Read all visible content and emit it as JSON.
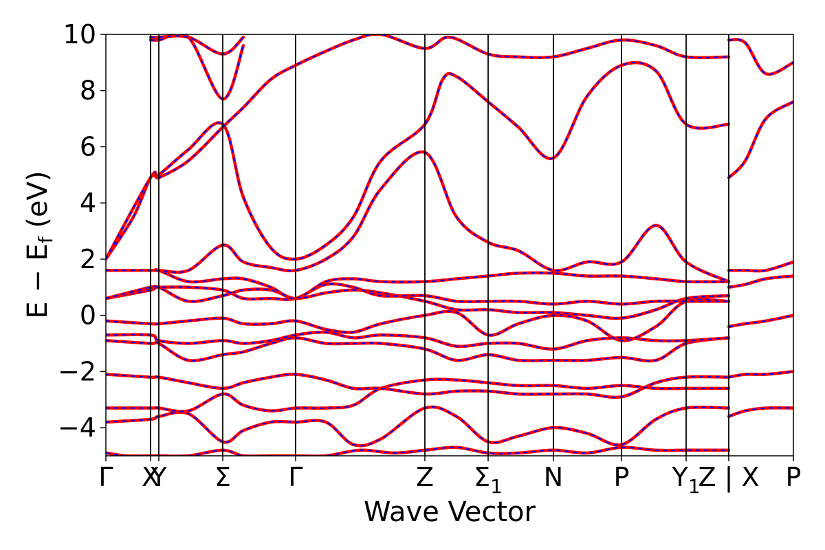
{
  "chart_data": {
    "type": "line",
    "title": "",
    "xlabel": "Wave Vector",
    "ylabel": "E − E_f (eV)",
    "ylabel_parts": {
      "main": "E − E",
      "sub": "f",
      "unit": " (eV)"
    },
    "ylim": [
      -5,
      10
    ],
    "yticks": [
      {
        "value": -4,
        "label": "−4"
      },
      {
        "value": -2,
        "label": "−2"
      },
      {
        "value": 0,
        "label": "0"
      },
      {
        "value": 2,
        "label": "2"
      },
      {
        "value": 4,
        "label": "4"
      },
      {
        "value": 6,
        "label": "6"
      },
      {
        "value": 8,
        "label": "8"
      },
      {
        "value": 10,
        "label": "10"
      }
    ],
    "xlim": [
      0,
      1
    ],
    "kpoints": [
      {
        "label": "Γ",
        "x": 0.0,
        "line": false
      },
      {
        "label": "X",
        "x": 0.065,
        "line": true
      },
      {
        "label": "Y",
        "x": 0.077,
        "line": true
      },
      {
        "label": "Σ",
        "x": 0.17,
        "line": true
      },
      {
        "label": "Γ",
        "x": 0.276,
        "line": true
      },
      {
        "label": "Z",
        "x": 0.464,
        "line": true
      },
      {
        "label": "Σ",
        "label_sub": "1",
        "x": 0.556,
        "line": true
      },
      {
        "label": "N",
        "x": 0.651,
        "line": true
      },
      {
        "label": "P",
        "x": 0.75,
        "line": true
      },
      {
        "label": "Y",
        "label_sub": "1",
        "x": 0.844,
        "line": true
      },
      {
        "label": "Z | X",
        "x": 0.906,
        "line": true
      },
      {
        "label": "P",
        "x": 1.0,
        "line": false
      }
    ],
    "line_colors": {
      "band": "#ff0000",
      "band_overlay": "#0000ff",
      "kpath": "#000000"
    },
    "series_style": "each band drawn as red solid line with blue dashed overlay",
    "series": [
      {
        "x": [
          0,
          0.03,
          0.065,
          0.077,
          0.12,
          0.17,
          0.2,
          0.24,
          0.276,
          0.32,
          0.37,
          0.42,
          0.464,
          0.51,
          0.556,
          0.6,
          0.651,
          0.7,
          0.75,
          0.8,
          0.844,
          0.906
        ],
        "values": [
          -4.9,
          -5.0,
          -5.0,
          -5.0,
          -5.0,
          -4.8,
          -5.0,
          -5.0,
          -5.0,
          -5.0,
          -4.8,
          -4.9,
          -4.8,
          -4.7,
          -4.9,
          -4.9,
          -4.8,
          -4.9,
          -4.7,
          -4.8,
          -4.8,
          -4.8
        ]
      },
      {
        "x": [
          0,
          0.065,
          0.077,
          0.12,
          0.17,
          0.2,
          0.24,
          0.276,
          0.32,
          0.36,
          0.4,
          0.464,
          0.51,
          0.556,
          0.6,
          0.651,
          0.7,
          0.75,
          0.8,
          0.844,
          0.906
        ],
        "values": [
          -3.8,
          -3.7,
          -3.6,
          -3.5,
          -4.5,
          -4.1,
          -3.8,
          -3.8,
          -3.8,
          -4.6,
          -4.4,
          -3.3,
          -3.6,
          -4.5,
          -4.3,
          -4.0,
          -4.2,
          -4.6,
          -3.7,
          -3.3,
          -3.3
        ]
      },
      {
        "x": [
          0,
          0.065,
          0.077,
          0.12,
          0.17,
          0.2,
          0.24,
          0.276,
          0.32,
          0.36,
          0.4,
          0.464,
          0.51,
          0.556,
          0.6,
          0.651,
          0.7,
          0.75,
          0.8,
          0.844,
          0.906
        ],
        "values": [
          -3.3,
          -3.3,
          -3.3,
          -3.4,
          -2.8,
          -3.2,
          -3.4,
          -3.3,
          -3.3,
          -3.2,
          -2.6,
          -2.3,
          -2.3,
          -2.4,
          -2.5,
          -2.5,
          -2.6,
          -2.5,
          -2.6,
          -2.6,
          -2.6
        ]
      },
      {
        "x": [
          0,
          0.065,
          0.077,
          0.12,
          0.17,
          0.2,
          0.24,
          0.276,
          0.32,
          0.36,
          0.4,
          0.464,
          0.51,
          0.556,
          0.6,
          0.651,
          0.7,
          0.75,
          0.8,
          0.844,
          0.906
        ],
        "values": [
          -2.1,
          -2.2,
          -2.2,
          -2.4,
          -2.6,
          -2.4,
          -2.2,
          -2.1,
          -2.3,
          -2.6,
          -2.6,
          -2.8,
          -2.7,
          -2.7,
          -2.8,
          -2.8,
          -2.8,
          -2.9,
          -2.4,
          -2.2,
          -2.2
        ]
      },
      {
        "x": [
          0,
          0.065,
          0.077,
          0.12,
          0.17,
          0.2,
          0.24,
          0.276,
          0.32,
          0.36,
          0.4,
          0.464,
          0.51,
          0.556,
          0.6,
          0.651,
          0.7,
          0.75,
          0.8,
          0.844,
          0.906
        ],
        "values": [
          -0.9,
          -1.0,
          -1.0,
          -1.6,
          -1.4,
          -1.3,
          -1.0,
          -0.8,
          -1.0,
          -1.0,
          -1.0,
          -1.2,
          -1.6,
          -1.4,
          -1.6,
          -1.6,
          -1.6,
          -1.5,
          -1.6,
          -1.0,
          -0.8
        ]
      },
      {
        "x": [
          0,
          0.065,
          0.077,
          0.12,
          0.17,
          0.2,
          0.24,
          0.276,
          0.32,
          0.36,
          0.4,
          0.464,
          0.51,
          0.556,
          0.6,
          0.651,
          0.7,
          0.75,
          0.8,
          0.844,
          0.906
        ],
        "values": [
          -0.7,
          -0.7,
          -0.9,
          -1.0,
          -0.9,
          -1.0,
          -0.9,
          -0.7,
          -0.6,
          -0.8,
          -0.7,
          -0.8,
          -1.1,
          -1.0,
          -1.0,
          -1.2,
          -0.9,
          -0.8,
          -0.9,
          -0.9,
          -0.8
        ]
      },
      {
        "x": [
          0,
          0.065,
          0.077,
          0.12,
          0.17,
          0.2,
          0.24,
          0.276,
          0.32,
          0.36,
          0.4,
          0.464,
          0.51,
          0.556,
          0.6,
          0.651,
          0.7,
          0.75,
          0.8,
          0.844,
          0.906
        ],
        "values": [
          -0.2,
          -0.3,
          -0.3,
          -0.2,
          -0.1,
          -0.3,
          -0.3,
          -0.2,
          -0.5,
          -0.6,
          -0.3,
          0.0,
          0.1,
          -0.7,
          -0.3,
          0.0,
          -0.2,
          -0.9,
          -0.4,
          0.5,
          0.5
        ]
      },
      {
        "x": [
          0,
          0.065,
          0.077,
          0.12,
          0.17,
          0.2,
          0.24,
          0.276,
          0.32,
          0.36,
          0.4,
          0.464,
          0.51,
          0.556,
          0.6,
          0.651,
          0.7,
          0.75,
          0.8,
          0.844,
          0.906
        ],
        "values": [
          0.6,
          0.9,
          1.0,
          0.5,
          0.7,
          0.9,
          0.9,
          0.6,
          0.8,
          0.9,
          0.8,
          0.5,
          0.2,
          0.2,
          0.1,
          0.1,
          0.0,
          -0.1,
          0.2,
          0.6,
          0.7
        ]
      },
      {
        "x": [
          0,
          0.065,
          0.077,
          0.12,
          0.17,
          0.2,
          0.24,
          0.276,
          0.32,
          0.36,
          0.4,
          0.464,
          0.51,
          0.556,
          0.6,
          0.651,
          0.7,
          0.75,
          0.8,
          0.844,
          0.906
        ],
        "values": [
          0.6,
          1.0,
          1.0,
          1.0,
          0.9,
          0.6,
          0.6,
          0.6,
          1.1,
          1.0,
          0.7,
          0.7,
          0.5,
          0.5,
          0.5,
          0.4,
          0.5,
          0.4,
          0.5,
          0.5,
          0.5
        ]
      },
      {
        "x": [
          0,
          0.065,
          0.077,
          0.12,
          0.17,
          0.2,
          0.24,
          0.276,
          0.32,
          0.36,
          0.4,
          0.464,
          0.51,
          0.556,
          0.6,
          0.651,
          0.7,
          0.75,
          0.8,
          0.844,
          0.906
        ],
        "values": [
          1.6,
          1.6,
          1.6,
          1.2,
          1.3,
          1.3,
          1.0,
          0.6,
          1.2,
          1.3,
          1.2,
          1.2,
          1.3,
          1.4,
          1.5,
          1.5,
          1.4,
          1.4,
          1.3,
          1.2,
          1.2
        ]
      },
      {
        "x": [
          0,
          0.065,
          0.077,
          0.12,
          0.17,
          0.2,
          0.24,
          0.276,
          0.32,
          0.36,
          0.4,
          0.464,
          0.51,
          0.556,
          0.6,
          0.651,
          0.7,
          0.75,
          0.8,
          0.844,
          0.906
        ],
        "values": [
          1.6,
          1.6,
          1.6,
          1.6,
          2.5,
          1.9,
          1.7,
          1.6,
          2.0,
          2.8,
          4.5,
          5.8,
          3.5,
          2.6,
          2.3,
          1.6,
          1.9,
          1.9,
          3.2,
          1.9,
          1.2
        ]
      },
      {
        "x": [
          0,
          0.04,
          0.065,
          0.077,
          0.12,
          0.17,
          0.2,
          0.24,
          0.276,
          0.32,
          0.36,
          0.4,
          0.464,
          0.49,
          0.51,
          0.556,
          0.6,
          0.651,
          0.7,
          0.75,
          0.8,
          0.844,
          0.906
        ],
        "values": [
          2.0,
          3.5,
          4.9,
          5.0,
          5.9,
          6.8,
          4.2,
          2.4,
          2.0,
          2.5,
          3.5,
          5.5,
          6.8,
          8.4,
          8.5,
          7.6,
          6.7,
          5.6,
          7.8,
          8.9,
          8.7,
          6.8,
          6.8
        ]
      },
      {
        "x": [
          0,
          0.065,
          0.077,
          0.12,
          0.17,
          0.2,
          0.24,
          0.276,
          0.32,
          0.36,
          0.4,
          0.464,
          0.5,
          0.556,
          0.6,
          0.651,
          0.7,
          0.75,
          0.8,
          0.844,
          0.906
        ],
        "values": [
          2.0,
          4.9,
          4.9,
          5.5,
          6.7,
          7.4,
          8.4,
          8.9,
          9.4,
          9.8,
          10.0,
          9.5,
          9.9,
          9.3,
          9.2,
          9.2,
          9.5,
          9.8,
          9.6,
          9.2,
          9.2
        ]
      },
      {
        "x": [
          0.065,
          0.077,
          0.12,
          0.17,
          0.2
        ],
        "values": [
          9.8,
          9.8,
          9.9,
          7.7,
          9.6
        ]
      },
      {
        "x": [
          0.065,
          0.077,
          0.12,
          0.17,
          0.2
        ],
        "values": [
          9.9,
          9.9,
          9.9,
          9.3,
          9.9
        ]
      },
      {
        "x": [
          0.906,
          0.93,
          0.96,
          1.0
        ],
        "values": [
          -3.6,
          -3.4,
          -3.3,
          -3.3
        ]
      },
      {
        "x": [
          0.906,
          0.93,
          0.96,
          1.0
        ],
        "values": [
          -2.2,
          -2.1,
          -2.1,
          -2.0
        ]
      },
      {
        "x": [
          0.906,
          0.93,
          0.96,
          1.0
        ],
        "values": [
          -0.4,
          -0.3,
          -0.2,
          0.0
        ]
      },
      {
        "x": [
          0.906,
          0.93,
          0.96,
          1.0
        ],
        "values": [
          1.0,
          1.1,
          1.3,
          1.4
        ]
      },
      {
        "x": [
          0.906,
          0.93,
          0.96,
          1.0
        ],
        "values": [
          1.6,
          1.6,
          1.6,
          1.9
        ]
      },
      {
        "x": [
          0.906,
          0.93,
          0.96,
          1.0
        ],
        "values": [
          4.9,
          5.5,
          7.0,
          7.6
        ]
      },
      {
        "x": [
          0.906,
          0.93,
          0.96,
          1.0
        ],
        "values": [
          9.8,
          9.7,
          8.6,
          9.0
        ]
      }
    ]
  }
}
